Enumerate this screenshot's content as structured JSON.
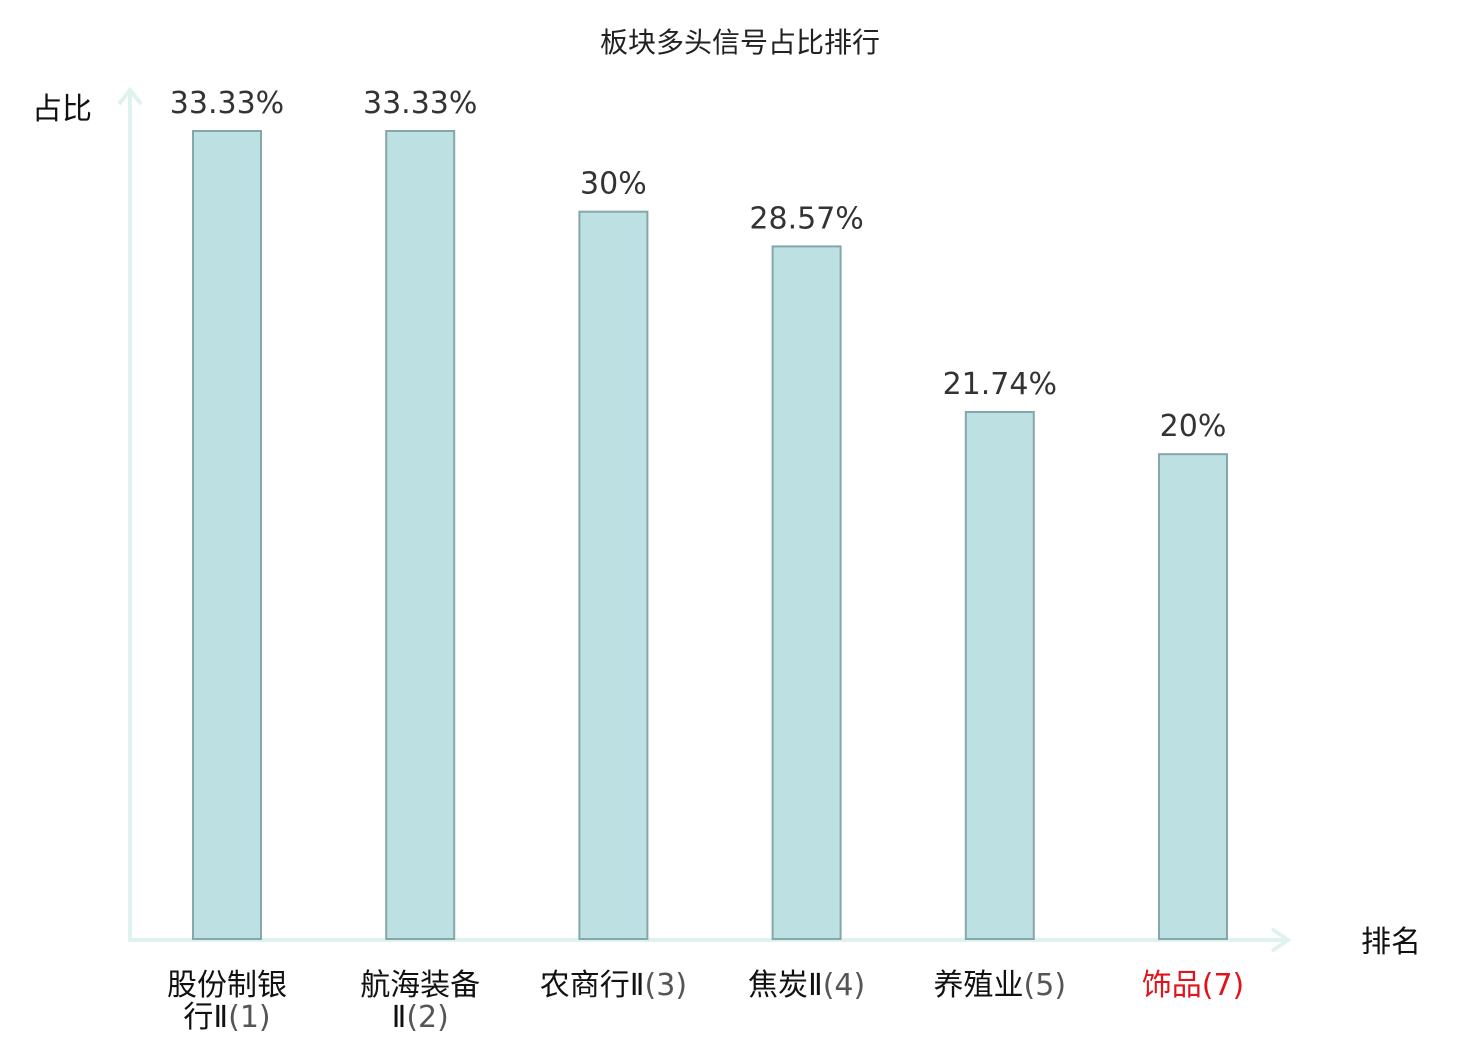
{
  "chart_data": {
    "type": "bar",
    "title": "板块多头信号占比排行",
    "ylabel": "占比",
    "xlabel": "排名",
    "ylim": [
      0,
      35
    ],
    "grid": false,
    "categories": [
      {
        "lines": [
          "股份制银",
          "行Ⅱ"
        ],
        "rank": "(1)",
        "highlight": false
      },
      {
        "lines": [
          "航海装备",
          "Ⅱ"
        ],
        "rank": "(2)",
        "highlight": false
      },
      {
        "lines": [
          "农商行Ⅱ"
        ],
        "rank": "(3)",
        "highlight": false
      },
      {
        "lines": [
          "焦炭Ⅱ"
        ],
        "rank": "(4)",
        "highlight": false
      },
      {
        "lines": [
          "养殖业"
        ],
        "rank": "(5)",
        "highlight": false
      },
      {
        "lines": [
          "饰品"
        ],
        "rank": "(7)",
        "highlight": true
      }
    ],
    "values": [
      33.33,
      33.33,
      30,
      28.57,
      21.74,
      20
    ],
    "value_labels": [
      "33.33%",
      "33.33%",
      "30%",
      "28.57%",
      "21.74%",
      "20%"
    ]
  },
  "colors": {
    "bar_fill": "#bde0e2",
    "bar_stroke": "#86a7a9",
    "axis": "#dff2ef",
    "category_text": "#111111",
    "rank_text": "#555555",
    "highlight_text": "#e0141b"
  }
}
